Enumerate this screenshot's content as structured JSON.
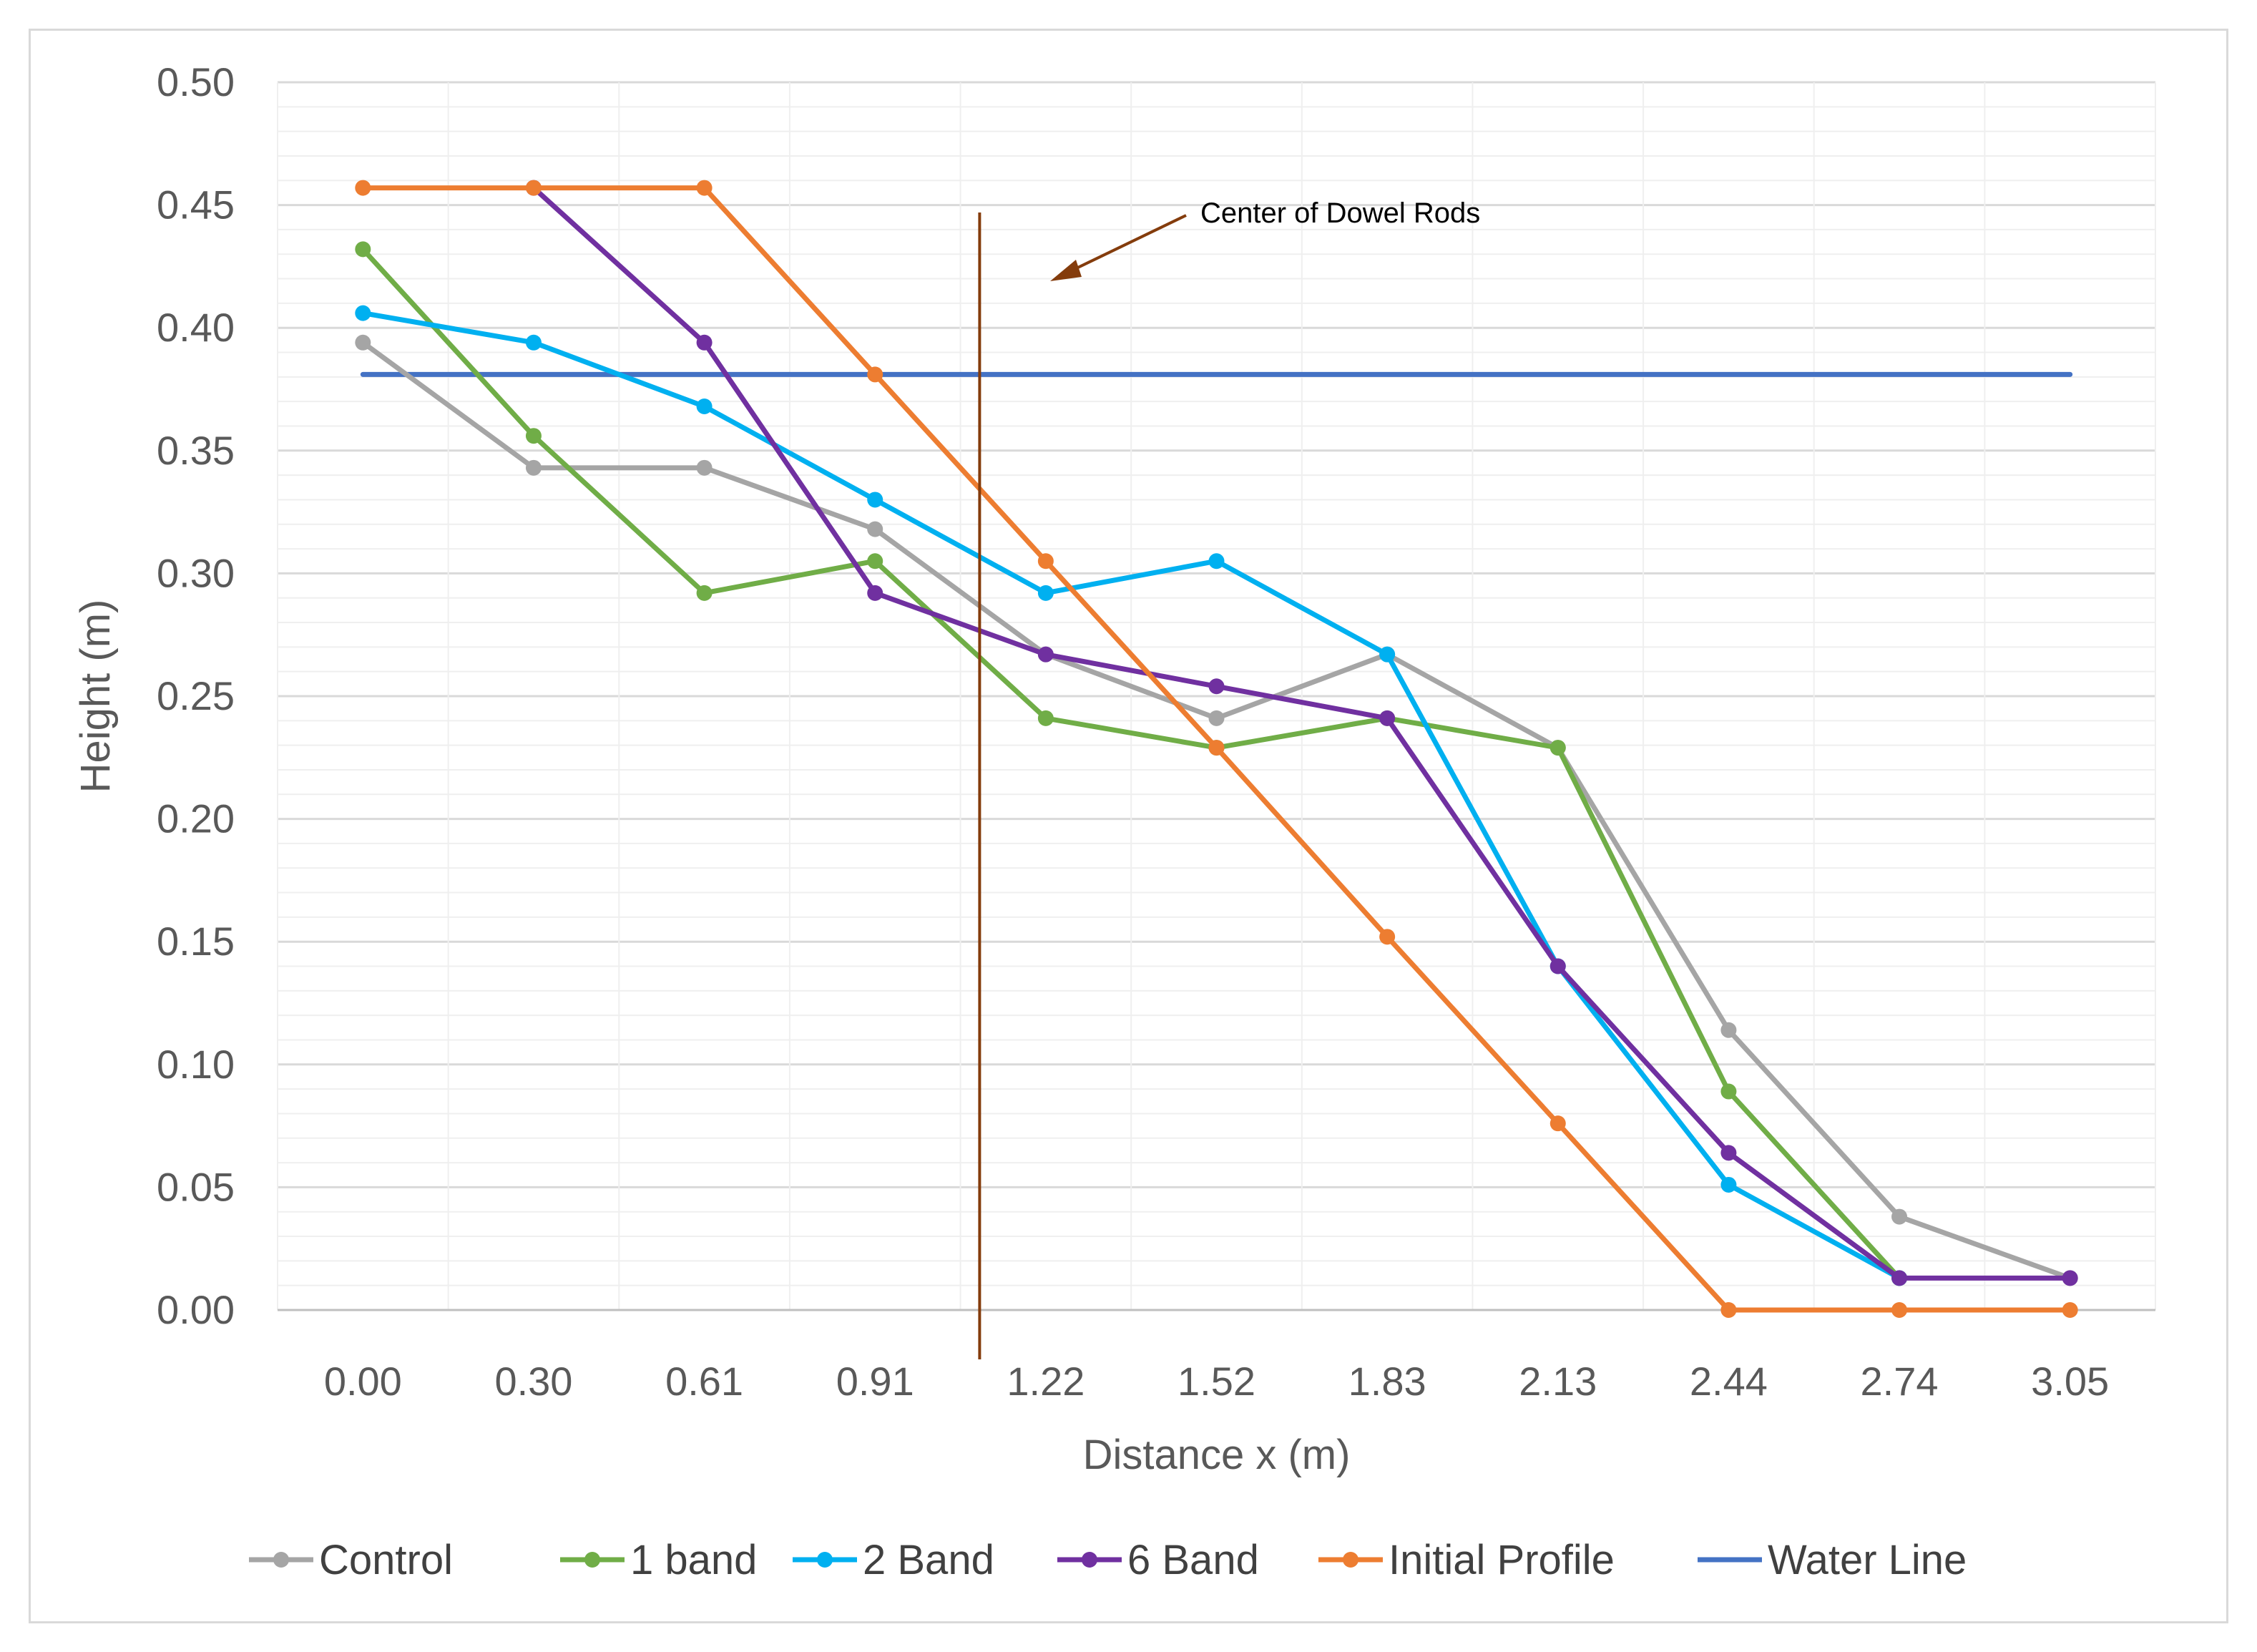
{
  "chart_data": {
    "type": "line",
    "xlabel": "Distance x (m)",
    "ylabel": "Height (m)",
    "categories": [
      "0.00",
      "0.30",
      "0.61",
      "0.91",
      "1.22",
      "1.52",
      "1.83",
      "2.13",
      "2.44",
      "2.74",
      "3.05"
    ],
    "ylim": [
      0,
      0.5
    ],
    "yticks": [
      "0.00",
      "0.05",
      "0.10",
      "0.15",
      "0.20",
      "0.25",
      "0.30",
      "0.35",
      "0.40",
      "0.45",
      "0.50"
    ],
    "grid": true,
    "legend_position": "bottom",
    "series": [
      {
        "name": "Control",
        "color": "#a5a5a5",
        "markers": true,
        "values": [
          0.394,
          0.343,
          0.343,
          0.318,
          0.267,
          0.241,
          0.267,
          0.229,
          0.114,
          0.038,
          0.013
        ]
      },
      {
        "name": "1 band",
        "color": "#70ad47",
        "markers": true,
        "values": [
          0.432,
          0.356,
          0.292,
          0.305,
          0.241,
          0.229,
          0.241,
          0.229,
          0.089,
          0.013,
          null
        ]
      },
      {
        "name": "2 Band",
        "color": "#00b0f0",
        "markers": true,
        "values": [
          0.406,
          0.394,
          0.368,
          0.33,
          0.292,
          0.305,
          0.267,
          0.14,
          0.051,
          0.013,
          null
        ]
      },
      {
        "name": "6 Band",
        "color": "#7030a0",
        "markers": true,
        "values": [
          null,
          0.457,
          0.394,
          0.292,
          0.267,
          0.254,
          0.241,
          0.14,
          0.064,
          0.013,
          0.013
        ]
      },
      {
        "name": "Initial Profile",
        "color": "#ed7d31",
        "markers": true,
        "values": [
          0.457,
          0.457,
          0.457,
          0.381,
          0.305,
          0.229,
          0.152,
          0.076,
          0.0,
          0.0,
          0.0
        ]
      },
      {
        "name": "Water Line",
        "color": "#4472c4",
        "markers": false,
        "values": [
          0.381,
          0.381,
          0.381,
          0.381,
          0.381,
          0.381,
          0.381,
          0.381,
          0.381,
          0.381,
          0.381
        ]
      }
    ],
    "annotations": [
      {
        "text": "Center of Dowel Rods",
        "line_x": 1.1,
        "line_color": "#843c0c",
        "arrow_color": "#843c0c"
      }
    ]
  }
}
